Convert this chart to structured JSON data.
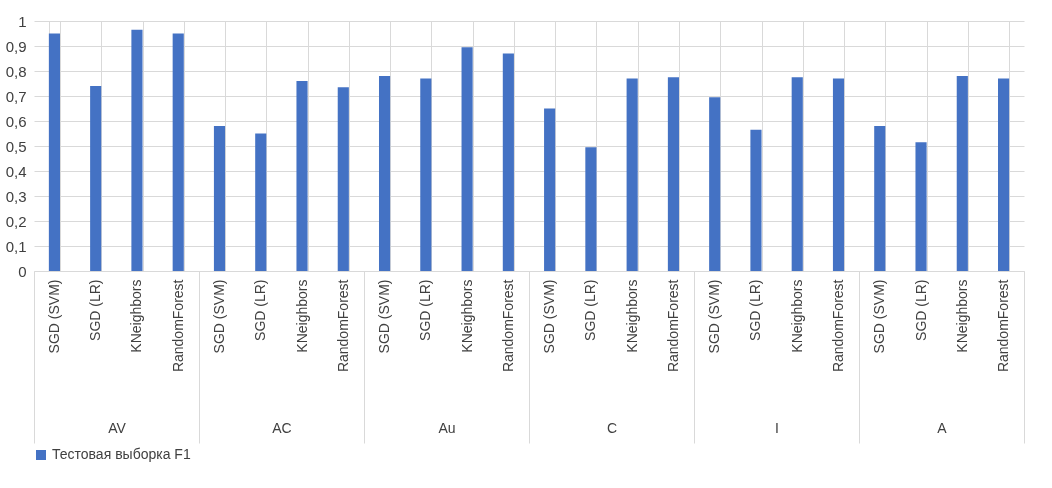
{
  "chart_data": {
    "type": "bar",
    "categories": [
      "SGD (SVM)",
      "SGD (LR)",
      "KNeighbors",
      "RandomForest",
      "SGD (SVM)",
      "SGD (LR)",
      "KNeighbors",
      "RandomForest",
      "SGD (SVM)",
      "SGD (LR)",
      "KNeighbors",
      "RandomForest",
      "SGD (SVM)",
      "SGD (LR)",
      "KNeighbors",
      "RandomForest",
      "SGD (SVM)",
      "SGD (LR)",
      "KNeighbors",
      "RandomForest",
      "SGD (SVM)",
      "SGD (LR)",
      "KNeighbors",
      "RandomForest"
    ],
    "series": [
      {
        "name": "Тестовая выборка F1",
        "color": "#4472c4",
        "values": [
          0.95,
          0.74,
          0.965,
          0.95,
          0.58,
          0.55,
          0.76,
          0.735,
          0.78,
          0.77,
          0.895,
          0.87,
          0.65,
          0.495,
          0.77,
          0.775,
          0.695,
          0.565,
          0.775,
          0.77,
          0.58,
          0.515,
          0.78,
          0.77
        ]
      }
    ],
    "annotations": [
      "AV",
      "AC",
      "Au",
      "C",
      "I",
      "A"
    ],
    "ylim": [
      0,
      1
    ],
    "yticks": [
      0,
      {
        "value": 0.1,
        "label": "0,1"
      },
      {
        "value": 0.2,
        "label": "0,2"
      },
      {
        "value": 0.3,
        "label": "0,3"
      },
      {
        "value": 0.4,
        "label": "0,4"
      },
      {
        "value": 0.5,
        "label": "0,5"
      },
      {
        "value": 0.6,
        "label": "0,6"
      },
      {
        "value": 0.7,
        "label": "0,7"
      },
      {
        "value": 0.8,
        "label": "0,8"
      },
      {
        "value": 0.9,
        "label": "0,9"
      },
      1
    ],
    "grid": true,
    "legend": "bottom"
  }
}
